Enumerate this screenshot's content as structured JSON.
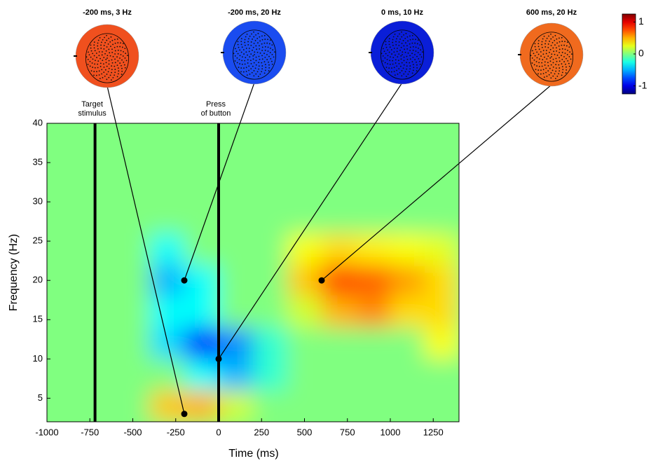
{
  "chart_data": {
    "type": "heatmap",
    "xlabel": "Time (ms)",
    "ylabel": "Frequency (Hz)",
    "xlim": [
      -1000,
      1400
    ],
    "ylim": [
      2,
      40
    ],
    "xticks": [
      -1000,
      -750,
      -500,
      -250,
      0,
      250,
      500,
      750,
      1000,
      1250
    ],
    "yticks": [
      5,
      10,
      15,
      20,
      25,
      30,
      35,
      40
    ],
    "x": [
      -900,
      -700,
      -500,
      -300,
      -100,
      100,
      300,
      500,
      700,
      900,
      1100,
      1300
    ],
    "y": [
      4,
      8,
      12,
      16,
      20,
      24,
      28,
      32,
      36,
      40
    ],
    "z": [
      [
        0,
        0,
        0,
        0.45,
        0.5,
        0.2,
        0,
        0,
        0,
        0,
        0,
        0
      ],
      [
        0,
        0,
        0,
        0,
        -0.3,
        -0.5,
        -0.2,
        0,
        0,
        0,
        0,
        0
      ],
      [
        0,
        0,
        0,
        -0.4,
        -0.9,
        -0.6,
        -0.2,
        0,
        0,
        0,
        0,
        0.3
      ],
      [
        0,
        0,
        0,
        -0.3,
        -0.3,
        0,
        0,
        0.2,
        0.5,
        0.6,
        0.4,
        0.4
      ],
      [
        0,
        0,
        0,
        -0.5,
        -0.3,
        0,
        0,
        0.45,
        0.75,
        0.7,
        0.55,
        0.4
      ],
      [
        0,
        0,
        0,
        -0.3,
        0,
        0,
        0,
        0.3,
        0.4,
        0.35,
        0.3,
        0.25
      ],
      [
        0,
        0,
        0,
        0,
        0,
        0,
        0,
        0,
        0,
        0,
        0,
        0
      ],
      [
        0,
        0,
        0,
        0,
        0,
        0,
        0,
        0,
        0,
        0,
        0,
        0
      ],
      [
        0,
        0,
        0,
        0,
        0,
        0,
        0,
        0,
        0,
        0,
        0,
        0
      ],
      [
        0,
        0,
        0,
        0,
        0,
        0,
        0,
        0,
        0,
        0,
        0,
        0
      ]
    ],
    "colormap": "jet",
    "clim": [
      -1.25,
      1.25
    ],
    "colorbar_ticks": [
      1,
      0,
      -1
    ],
    "events": [
      {
        "x": -720,
        "label": [
          "Target",
          "stimulus"
        ]
      },
      {
        "x": 0,
        "label": [
          "Press",
          "of button"
        ]
      }
    ],
    "topomaps": [
      {
        "label": "-200 ms, 3 Hz",
        "x": -200,
        "y": 3,
        "color": "#f0501e"
      },
      {
        "label": "-200 ms, 20 Hz",
        "x": -200,
        "y": 20,
        "color": "#1a4cf0"
      },
      {
        "label": "0 ms, 10 Hz",
        "x": 0,
        "y": 10,
        "color": "#0a1ed8"
      },
      {
        "label": "600 ms, 20 Hz",
        "x": 600,
        "y": 20,
        "color": "#f06a1e"
      }
    ]
  }
}
